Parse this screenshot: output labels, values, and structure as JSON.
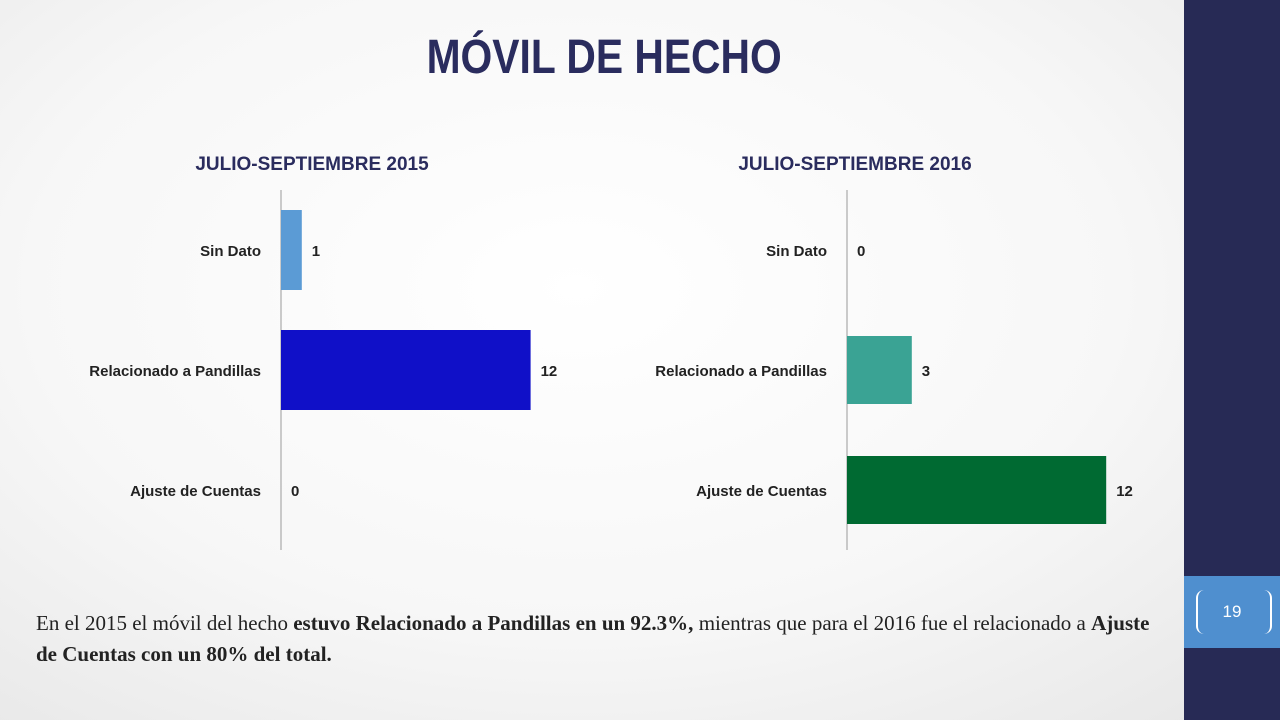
{
  "slide": {
    "title": "MÓVIL DE HECHO",
    "page_number": "19",
    "caption": {
      "p1": "En el 2015 el móvil del hecho ",
      "b1": "estuvo Relacionado a Pandillas en un 92.3%,",
      "p2": " mientras que para el 2016 fue el relacionado a ",
      "b2": "Ajuste de Cuentas con un 80% del total."
    }
  },
  "chart_data": [
    {
      "type": "bar",
      "orientation": "horizontal",
      "title": "JULIO-SEPTIEMBRE 2015",
      "categories": [
        "Sin Dato",
        "Relacionado a Pandillas",
        "Ajuste de Cuentas"
      ],
      "values": [
        1,
        12,
        0
      ],
      "colors": [
        "#5b9bd5",
        "#1010c8",
        "#1010c8"
      ],
      "xlim": [
        0,
        13
      ],
      "data_labels": true,
      "grid": false
    },
    {
      "type": "bar",
      "orientation": "horizontal",
      "title": "JULIO-SEPTIEMBRE 2016",
      "categories": [
        "Sin Dato",
        "Relacionado a Pandillas",
        "Ajuste de Cuentas"
      ],
      "values": [
        0,
        3,
        12
      ],
      "colors": [
        "#3aa394",
        "#3aa394",
        "#006a32"
      ],
      "xlim": [
        0,
        13
      ],
      "data_labels": true,
      "grid": false
    }
  ]
}
